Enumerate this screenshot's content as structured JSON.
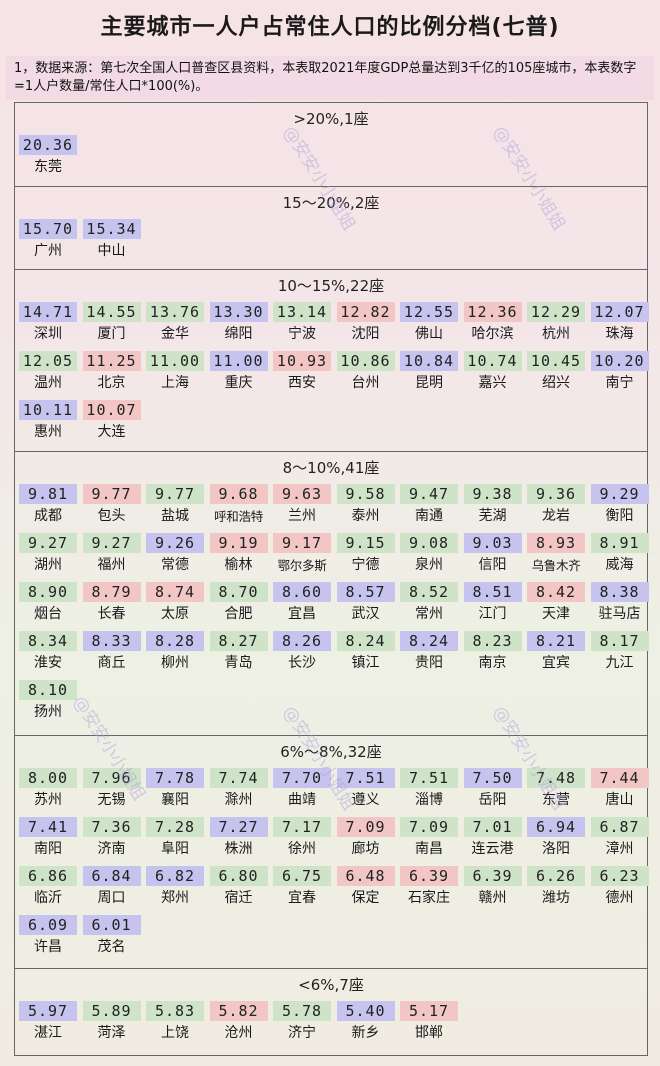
{
  "title": "主要城市一人户占常住人口的比例分档(七普)",
  "note": "1，数据来源：第七次全国人口普查区县资料，本表取2021年度GDP总量达到3千亿的105座城市，本表数字=1人户数量/常住人口*100(%)。",
  "watermark": "@安安小小姐姐",
  "colors": {
    "blue": "#c6c3ef",
    "green": "#cfe3c9",
    "red": "#f1c6c4"
  },
  "tiers": [
    {
      "header": ">20%,1座",
      "cities": [
        {
          "v": "20.36",
          "n": "东莞",
          "c": "blue"
        }
      ]
    },
    {
      "header": "15～20%,2座",
      "cities": [
        {
          "v": "15.70",
          "n": "广州",
          "c": "blue"
        },
        {
          "v": "15.34",
          "n": "中山",
          "c": "blue"
        }
      ]
    },
    {
      "header": "10～15%,22座",
      "cities": [
        {
          "v": "14.71",
          "n": "深圳",
          "c": "blue"
        },
        {
          "v": "14.55",
          "n": "厦门",
          "c": "green"
        },
        {
          "v": "13.76",
          "n": "金华",
          "c": "green"
        },
        {
          "v": "13.30",
          "n": "绵阳",
          "c": "blue"
        },
        {
          "v": "13.14",
          "n": "宁波",
          "c": "green"
        },
        {
          "v": "12.82",
          "n": "沈阳",
          "c": "red"
        },
        {
          "v": "12.55",
          "n": "佛山",
          "c": "blue"
        },
        {
          "v": "12.36",
          "n": "哈尔滨",
          "c": "red"
        },
        {
          "v": "12.29",
          "n": "杭州",
          "c": "green"
        },
        {
          "v": "12.07",
          "n": "珠海",
          "c": "blue"
        },
        {
          "v": "12.05",
          "n": "温州",
          "c": "green"
        },
        {
          "v": "11.25",
          "n": "北京",
          "c": "red"
        },
        {
          "v": "11.00",
          "n": "上海",
          "c": "green"
        },
        {
          "v": "11.00",
          "n": "重庆",
          "c": "blue"
        },
        {
          "v": "10.93",
          "n": "西安",
          "c": "red"
        },
        {
          "v": "10.86",
          "n": "台州",
          "c": "green"
        },
        {
          "v": "10.84",
          "n": "昆明",
          "c": "blue"
        },
        {
          "v": "10.74",
          "n": "嘉兴",
          "c": "green"
        },
        {
          "v": "10.45",
          "n": "绍兴",
          "c": "green"
        },
        {
          "v": "10.20",
          "n": "南宁",
          "c": "blue"
        },
        {
          "v": "10.11",
          "n": "惠州",
          "c": "blue"
        },
        {
          "v": "10.07",
          "n": "大连",
          "c": "red"
        }
      ]
    },
    {
      "header": "8～10%,41座",
      "cities": [
        {
          "v": "9.81",
          "n": "成都",
          "c": "blue"
        },
        {
          "v": "9.77",
          "n": "包头",
          "c": "red"
        },
        {
          "v": "9.77",
          "n": "盐城",
          "c": "green"
        },
        {
          "v": "9.68",
          "n": "呼和浩特",
          "c": "red"
        },
        {
          "v": "9.63",
          "n": "兰州",
          "c": "red"
        },
        {
          "v": "9.58",
          "n": "泰州",
          "c": "green"
        },
        {
          "v": "9.47",
          "n": "南通",
          "c": "green"
        },
        {
          "v": "9.38",
          "n": "芜湖",
          "c": "green"
        },
        {
          "v": "9.36",
          "n": "龙岩",
          "c": "green"
        },
        {
          "v": "9.29",
          "n": "衡阳",
          "c": "blue"
        },
        {
          "v": "9.27",
          "n": "湖州",
          "c": "green"
        },
        {
          "v": "9.27",
          "n": "福州",
          "c": "green"
        },
        {
          "v": "9.26",
          "n": "常德",
          "c": "blue"
        },
        {
          "v": "9.19",
          "n": "榆林",
          "c": "red"
        },
        {
          "v": "9.17",
          "n": "鄂尔多斯",
          "c": "red"
        },
        {
          "v": "9.15",
          "n": "宁德",
          "c": "green"
        },
        {
          "v": "9.08",
          "n": "泉州",
          "c": "green"
        },
        {
          "v": "9.03",
          "n": "信阳",
          "c": "blue"
        },
        {
          "v": "8.93",
          "n": "乌鲁木齐",
          "c": "red"
        },
        {
          "v": "8.91",
          "n": "威海",
          "c": "green"
        },
        {
          "v": "8.90",
          "n": "烟台",
          "c": "green"
        },
        {
          "v": "8.79",
          "n": "长春",
          "c": "red"
        },
        {
          "v": "8.74",
          "n": "太原",
          "c": "red"
        },
        {
          "v": "8.70",
          "n": "合肥",
          "c": "green"
        },
        {
          "v": "8.60",
          "n": "宜昌",
          "c": "blue"
        },
        {
          "v": "8.57",
          "n": "武汉",
          "c": "blue"
        },
        {
          "v": "8.52",
          "n": "常州",
          "c": "green"
        },
        {
          "v": "8.51",
          "n": "江门",
          "c": "blue"
        },
        {
          "v": "8.42",
          "n": "天津",
          "c": "red"
        },
        {
          "v": "8.38",
          "n": "驻马店",
          "c": "blue"
        },
        {
          "v": "8.34",
          "n": "淮安",
          "c": "green"
        },
        {
          "v": "8.33",
          "n": "商丘",
          "c": "blue"
        },
        {
          "v": "8.28",
          "n": "柳州",
          "c": "blue"
        },
        {
          "v": "8.27",
          "n": "青岛",
          "c": "green"
        },
        {
          "v": "8.26",
          "n": "长沙",
          "c": "blue"
        },
        {
          "v": "8.24",
          "n": "镇江",
          "c": "green"
        },
        {
          "v": "8.24",
          "n": "贵阳",
          "c": "blue"
        },
        {
          "v": "8.23",
          "n": "南京",
          "c": "green"
        },
        {
          "v": "8.21",
          "n": "宜宾",
          "c": "blue"
        },
        {
          "v": "8.17",
          "n": "九江",
          "c": "green"
        },
        {
          "v": "8.10",
          "n": "扬州",
          "c": "green"
        }
      ]
    },
    {
      "header": "6%～8%,32座",
      "cities": [
        {
          "v": "8.00",
          "n": "苏州",
          "c": "green"
        },
        {
          "v": "7.96",
          "n": "无锡",
          "c": "green"
        },
        {
          "v": "7.78",
          "n": "襄阳",
          "c": "blue"
        },
        {
          "v": "7.74",
          "n": "滁州",
          "c": "green"
        },
        {
          "v": "7.70",
          "n": "曲靖",
          "c": "blue"
        },
        {
          "v": "7.51",
          "n": "遵义",
          "c": "blue"
        },
        {
          "v": "7.51",
          "n": "淄博",
          "c": "green"
        },
        {
          "v": "7.50",
          "n": "岳阳",
          "c": "blue"
        },
        {
          "v": "7.48",
          "n": "东营",
          "c": "green"
        },
        {
          "v": "7.44",
          "n": "唐山",
          "c": "red"
        },
        {
          "v": "7.41",
          "n": "南阳",
          "c": "blue"
        },
        {
          "v": "7.36",
          "n": "济南",
          "c": "green"
        },
        {
          "v": "7.28",
          "n": "阜阳",
          "c": "green"
        },
        {
          "v": "7.27",
          "n": "株洲",
          "c": "blue"
        },
        {
          "v": "7.17",
          "n": "徐州",
          "c": "green"
        },
        {
          "v": "7.09",
          "n": "廊坊",
          "c": "red"
        },
        {
          "v": "7.09",
          "n": "南昌",
          "c": "green"
        },
        {
          "v": "7.01",
          "n": "连云港",
          "c": "green"
        },
        {
          "v": "6.94",
          "n": "洛阳",
          "c": "blue"
        },
        {
          "v": "6.87",
          "n": "漳州",
          "c": "green"
        },
        {
          "v": "6.86",
          "n": "临沂",
          "c": "green"
        },
        {
          "v": "6.84",
          "n": "周口",
          "c": "blue"
        },
        {
          "v": "6.82",
          "n": "郑州",
          "c": "blue"
        },
        {
          "v": "6.80",
          "n": "宿迁",
          "c": "green"
        },
        {
          "v": "6.75",
          "n": "宜春",
          "c": "green"
        },
        {
          "v": "6.48",
          "n": "保定",
          "c": "red"
        },
        {
          "v": "6.39",
          "n": "石家庄",
          "c": "red"
        },
        {
          "v": "6.39",
          "n": "赣州",
          "c": "green"
        },
        {
          "v": "6.26",
          "n": "潍坊",
          "c": "green"
        },
        {
          "v": "6.23",
          "n": "德州",
          "c": "green"
        },
        {
          "v": "6.09",
          "n": "许昌",
          "c": "blue"
        },
        {
          "v": "6.01",
          "n": "茂名",
          "c": "blue"
        }
      ]
    },
    {
      "header": "<6%,7座",
      "cities": [
        {
          "v": "5.97",
          "n": "湛江",
          "c": "blue"
        },
        {
          "v": "5.89",
          "n": "菏泽",
          "c": "green"
        },
        {
          "v": "5.83",
          "n": "上饶",
          "c": "green"
        },
        {
          "v": "5.82",
          "n": "沧州",
          "c": "red"
        },
        {
          "v": "5.78",
          "n": "济宁",
          "c": "green"
        },
        {
          "v": "5.40",
          "n": "新乡",
          "c": "blue"
        },
        {
          "v": "5.17",
          "n": "邯郸",
          "c": "red"
        }
      ]
    }
  ]
}
